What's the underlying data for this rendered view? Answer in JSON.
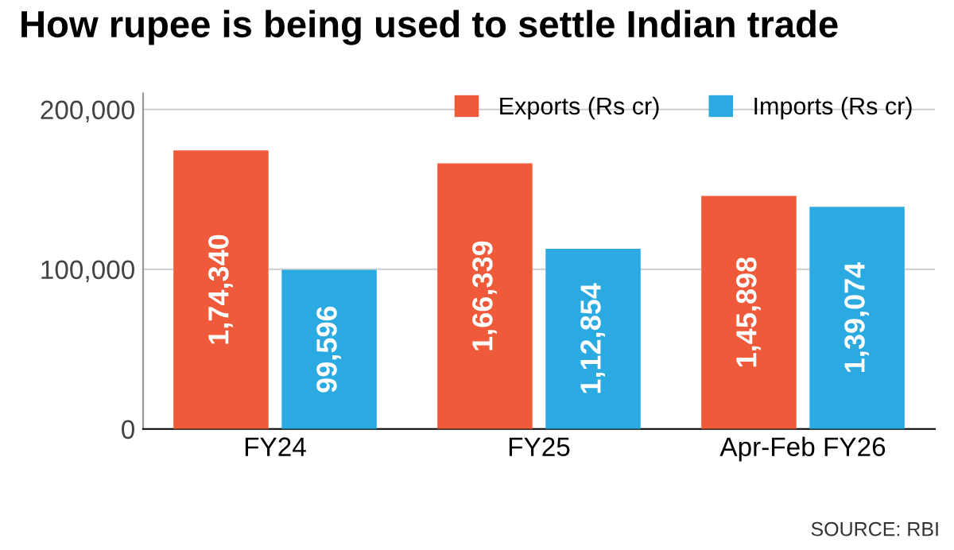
{
  "chart_data": {
    "type": "bar",
    "title": "How rupee is being used to settle Indian trade",
    "categories": [
      "FY24",
      "FY25",
      "Apr-Feb FY26"
    ],
    "series": [
      {
        "name": "Exports (Rs cr)",
        "color": "#ef5a3a",
        "values": [
          174340,
          166339,
          145898
        ],
        "value_labels": [
          "1,74,340",
          "1,66,339",
          "1,45,898"
        ]
      },
      {
        "name": "Imports (Rs cr)",
        "color": "#2aaae1",
        "values": [
          99596,
          112854,
          139074
        ],
        "value_labels": [
          "99,596",
          "1,12,854",
          "1,39,074"
        ]
      }
    ],
    "ylim": [
      0,
      210000
    ],
    "yticks": [
      0,
      {
        "value": 100000,
        "label": "100,000"
      },
      {
        "value": 200000,
        "label": "200,000"
      }
    ],
    "grid": "y",
    "legend": "top right",
    "annotations": [
      "SOURCE: RBI"
    ]
  }
}
